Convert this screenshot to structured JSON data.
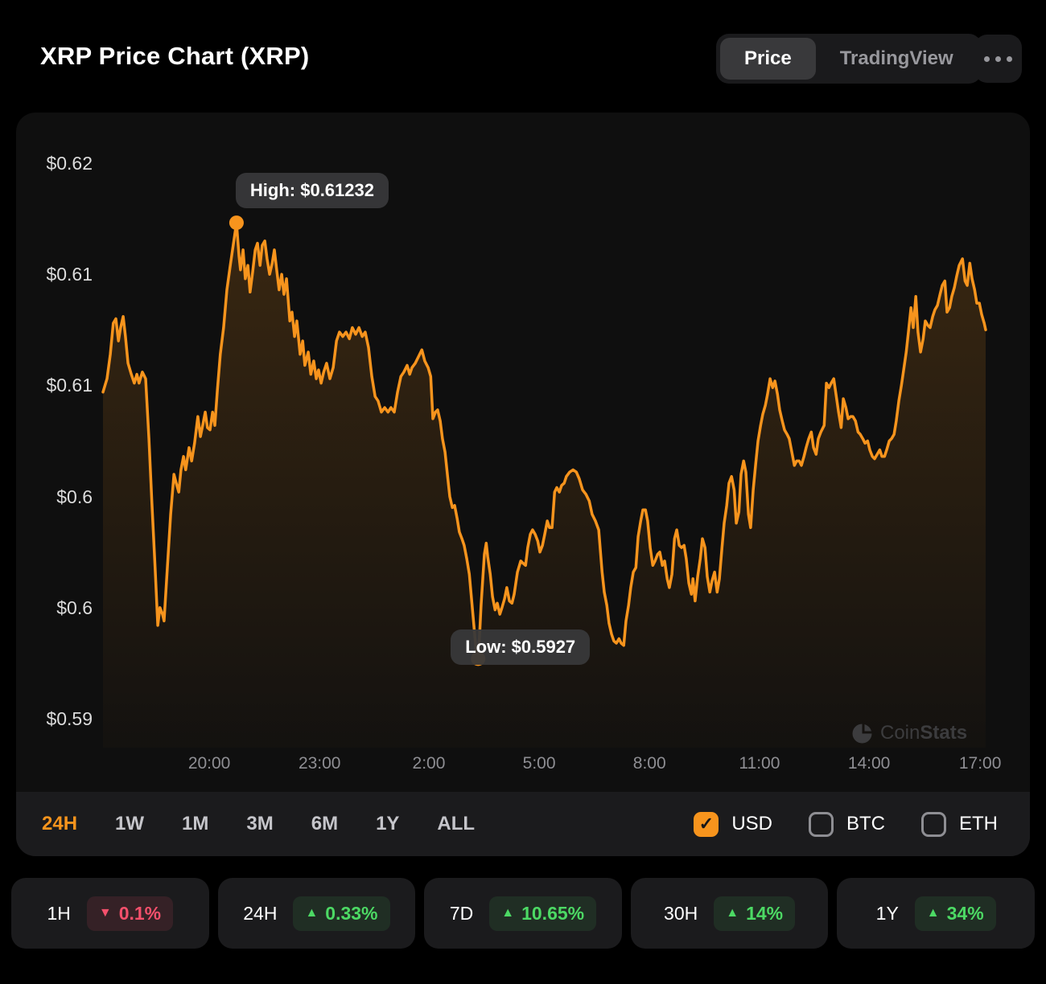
{
  "header": {
    "title": "XRP Price Chart (XRP)",
    "tabs": [
      {
        "label": "Price",
        "active": true
      },
      {
        "label": "TradingView",
        "active": false
      }
    ]
  },
  "colors": {
    "accent_orange": "#F7941D",
    "green": "#4CD964",
    "red": "#F4506C",
    "page_bg": "#000000",
    "card_bg": "#0F0F0F",
    "bar_bg": "#1B1B1D"
  },
  "watermark": {
    "text_coin": "Coin",
    "text_stats": "Stats",
    "icon": "pie-chart-icon"
  },
  "ranges": {
    "options": [
      "24H",
      "1W",
      "1M",
      "3M",
      "6M",
      "1Y",
      "ALL"
    ],
    "selected": "24H"
  },
  "currencies": [
    {
      "label": "USD",
      "checked": true
    },
    {
      "label": "BTC",
      "checked": false
    },
    {
      "label": "ETH",
      "checked": false
    }
  ],
  "stats": [
    {
      "label": "1H",
      "value": "0.1%",
      "direction": "down"
    },
    {
      "label": "24H",
      "value": "0.33%",
      "direction": "up"
    },
    {
      "label": "7D",
      "value": "10.65%",
      "direction": "up"
    },
    {
      "label": "30H",
      "value": "14%",
      "direction": "up"
    },
    {
      "label": "1Y",
      "value": "34%",
      "direction": "up"
    }
  ],
  "chart_data": {
    "type": "area",
    "title": "XRP Price Chart (XRP)",
    "x_unit": "hours_since_start",
    "x_range_hours": 24,
    "line_color": "#F7941D",
    "grid": false,
    "y_axis": {
      "min": 0.59,
      "max": 0.615,
      "tick_prices": [
        0.615,
        0.61,
        0.605,
        0.6,
        0.595,
        0.59
      ],
      "tick_labels": [
        "$0.62",
        "$0.61",
        "$0.61",
        "$0.6",
        "$0.6",
        "$0.59"
      ]
    },
    "x_axis": {
      "tick_hours": [
        2.89,
        5.89,
        8.86,
        11.86,
        14.86,
        17.85,
        20.83,
        23.85
      ],
      "tick_labels": [
        "20:00",
        "23:00",
        "2:00",
        "5:00",
        "8:00",
        "11:00",
        "14:00",
        "17:00"
      ]
    },
    "high": {
      "label": "High: $0.61232",
      "h": 3.63,
      "price": 0.61232
    },
    "low": {
      "label": "Low: $0.5927",
      "h": 10.2,
      "price": 0.5927
    },
    "series": [
      [
        0,
        0.6047
      ],
      [
        0.11,
        0.6053
      ],
      [
        0.2,
        0.6064
      ],
      [
        0.28,
        0.6078
      ],
      [
        0.35,
        0.608
      ],
      [
        0.42,
        0.607
      ],
      [
        0.48,
        0.6076
      ],
      [
        0.55,
        0.6081
      ],
      [
        0.61,
        0.6072
      ],
      [
        0.68,
        0.606
      ],
      [
        0.77,
        0.6055
      ],
      [
        0.85,
        0.6051
      ],
      [
        0.92,
        0.6055
      ],
      [
        0.98,
        0.6051
      ],
      [
        1.07,
        0.6056
      ],
      [
        1.16,
        0.6053
      ],
      [
        1.25,
        0.6026
      ],
      [
        1.33,
        0.5997
      ],
      [
        1.42,
        0.5967
      ],
      [
        1.49,
        0.5942
      ],
      [
        1.55,
        0.595
      ],
      [
        1.62,
        0.5947
      ],
      [
        1.66,
        0.5944
      ],
      [
        1.75,
        0.5968
      ],
      [
        1.84,
        0.5992
      ],
      [
        1.93,
        0.601
      ],
      [
        1.99,
        0.6006
      ],
      [
        2.06,
        0.6002
      ],
      [
        2.12,
        0.6012
      ],
      [
        2.19,
        0.6018
      ],
      [
        2.25,
        0.6012
      ],
      [
        2.34,
        0.6022
      ],
      [
        2.41,
        0.6016
      ],
      [
        2.49,
        0.6024
      ],
      [
        2.58,
        0.6036
      ],
      [
        2.65,
        0.6027
      ],
      [
        2.71,
        0.6032
      ],
      [
        2.78,
        0.6038
      ],
      [
        2.84,
        0.6031
      ],
      [
        2.91,
        0.603
      ],
      [
        2.98,
        0.6038
      ],
      [
        3.04,
        0.6032
      ],
      [
        3.11,
        0.6048
      ],
      [
        3.19,
        0.6064
      ],
      [
        3.28,
        0.6076
      ],
      [
        3.37,
        0.6093
      ],
      [
        3.46,
        0.6104
      ],
      [
        3.54,
        0.6113
      ],
      [
        3.63,
        0.61232
      ],
      [
        3.7,
        0.6108
      ],
      [
        3.74,
        0.6102
      ],
      [
        3.81,
        0.6111
      ],
      [
        3.87,
        0.6098
      ],
      [
        3.94,
        0.6104
      ],
      [
        4,
        0.6092
      ],
      [
        4.07,
        0.6101
      ],
      [
        4.14,
        0.6111
      ],
      [
        4.2,
        0.6114
      ],
      [
        4.27,
        0.6104
      ],
      [
        4.33,
        0.6113
      ],
      [
        4.4,
        0.6115
      ],
      [
        4.46,
        0.6107
      ],
      [
        4.53,
        0.61
      ],
      [
        4.6,
        0.6105
      ],
      [
        4.66,
        0.6111
      ],
      [
        4.73,
        0.6101
      ],
      [
        4.79,
        0.6093
      ],
      [
        4.86,
        0.61
      ],
      [
        4.92,
        0.6091
      ],
      [
        4.99,
        0.6098
      ],
      [
        5.08,
        0.6079
      ],
      [
        5.14,
        0.6083
      ],
      [
        5.21,
        0.6072
      ],
      [
        5.27,
        0.6079
      ],
      [
        5.36,
        0.6064
      ],
      [
        5.43,
        0.607
      ],
      [
        5.49,
        0.6059
      ],
      [
        5.58,
        0.6065
      ],
      [
        5.65,
        0.6055
      ],
      [
        5.73,
        0.6061
      ],
      [
        5.8,
        0.6053
      ],
      [
        5.86,
        0.6057
      ],
      [
        5.93,
        0.6051
      ],
      [
        6,
        0.6056
      ],
      [
        6.08,
        0.606
      ],
      [
        6.17,
        0.6053
      ],
      [
        6.26,
        0.6058
      ],
      [
        6.35,
        0.607
      ],
      [
        6.43,
        0.6074
      ],
      [
        6.52,
        0.6072
      ],
      [
        6.61,
        0.6074
      ],
      [
        6.7,
        0.6071
      ],
      [
        6.78,
        0.6076
      ],
      [
        6.87,
        0.6073
      ],
      [
        6.96,
        0.6076
      ],
      [
        7.05,
        0.6072
      ],
      [
        7.13,
        0.6074
      ],
      [
        7.22,
        0.6067
      ],
      [
        7.31,
        0.6054
      ],
      [
        7.4,
        0.6045
      ],
      [
        7.48,
        0.6043
      ],
      [
        7.57,
        0.6038
      ],
      [
        7.66,
        0.604
      ],
      [
        7.75,
        0.6038
      ],
      [
        7.83,
        0.604
      ],
      [
        7.92,
        0.6038
      ],
      [
        8.01,
        0.6047
      ],
      [
        8.1,
        0.6054
      ],
      [
        8.18,
        0.6056
      ],
      [
        8.27,
        0.6059
      ],
      [
        8.34,
        0.6055
      ],
      [
        8.4,
        0.6058
      ],
      [
        8.49,
        0.606
      ],
      [
        8.58,
        0.6063
      ],
      [
        8.67,
        0.6066
      ],
      [
        8.75,
        0.6061
      ],
      [
        8.84,
        0.6058
      ],
      [
        8.91,
        0.6054
      ],
      [
        8.97,
        0.6035
      ],
      [
        9.04,
        0.6038
      ],
      [
        9.1,
        0.6039
      ],
      [
        9.17,
        0.6034
      ],
      [
        9.23,
        0.6026
      ],
      [
        9.3,
        0.602
      ],
      [
        9.37,
        0.6009
      ],
      [
        9.43,
        0.6
      ],
      [
        9.5,
        0.5995
      ],
      [
        9.56,
        0.5996
      ],
      [
        9.63,
        0.599
      ],
      [
        9.69,
        0.5984
      ],
      [
        9.76,
        0.5981
      ],
      [
        9.82,
        0.5978
      ],
      [
        9.89,
        0.5972
      ],
      [
        9.96,
        0.5965
      ],
      [
        10.02,
        0.5954
      ],
      [
        10.09,
        0.5941
      ],
      [
        10.15,
        0.593
      ],
      [
        10.2,
        0.5927
      ],
      [
        10.24,
        0.5938
      ],
      [
        10.28,
        0.5951
      ],
      [
        10.33,
        0.5964
      ],
      [
        10.37,
        0.5974
      ],
      [
        10.42,
        0.5979
      ],
      [
        10.46,
        0.5973
      ],
      [
        10.53,
        0.5965
      ],
      [
        10.59,
        0.5955
      ],
      [
        10.66,
        0.5949
      ],
      [
        10.72,
        0.5952
      ],
      [
        10.79,
        0.5947
      ],
      [
        10.85,
        0.595
      ],
      [
        10.92,
        0.5954
      ],
      [
        10.98,
        0.5959
      ],
      [
        11.05,
        0.5953
      ],
      [
        11.12,
        0.5952
      ],
      [
        11.18,
        0.5956
      ],
      [
        11.27,
        0.5966
      ],
      [
        11.36,
        0.5971
      ],
      [
        11.42,
        0.597
      ],
      [
        11.49,
        0.5969
      ],
      [
        11.55,
        0.5977
      ],
      [
        11.62,
        0.5983
      ],
      [
        11.68,
        0.5985
      ],
      [
        11.75,
        0.5983
      ],
      [
        11.82,
        0.598
      ],
      [
        11.88,
        0.5975
      ],
      [
        11.95,
        0.5978
      ],
      [
        12.01,
        0.5983
      ],
      [
        12.08,
        0.5989
      ],
      [
        12.14,
        0.5986
      ],
      [
        12.21,
        0.5986
      ],
      [
        12.28,
        0.6002
      ],
      [
        12.34,
        0.6004
      ],
      [
        12.41,
        0.6002
      ],
      [
        12.47,
        0.6005
      ],
      [
        12.54,
        0.6006
      ],
      [
        12.6,
        0.6009
      ],
      [
        12.69,
        0.6011
      ],
      [
        12.78,
        0.6012
      ],
      [
        12.87,
        0.6011
      ],
      [
        12.95,
        0.6008
      ],
      [
        13.04,
        0.6003
      ],
      [
        13.13,
        0.6001
      ],
      [
        13.22,
        0.5998
      ],
      [
        13.3,
        0.5992
      ],
      [
        13.39,
        0.5989
      ],
      [
        13.48,
        0.5985
      ],
      [
        13.57,
        0.5966
      ],
      [
        13.63,
        0.5957
      ],
      [
        13.7,
        0.5951
      ],
      [
        13.76,
        0.5943
      ],
      [
        13.83,
        0.5938
      ],
      [
        13.89,
        0.5935
      ],
      [
        13.96,
        0.5934
      ],
      [
        14.03,
        0.5936
      ],
      [
        14.09,
        0.5934
      ],
      [
        14.16,
        0.5933
      ],
      [
        14.22,
        0.5944
      ],
      [
        14.29,
        0.5951
      ],
      [
        14.35,
        0.5959
      ],
      [
        14.42,
        0.5966
      ],
      [
        14.49,
        0.5968
      ],
      [
        14.55,
        0.5982
      ],
      [
        14.62,
        0.5989
      ],
      [
        14.68,
        0.5994
      ],
      [
        14.75,
        0.5994
      ],
      [
        14.81,
        0.5989
      ],
      [
        14.88,
        0.5977
      ],
      [
        14.95,
        0.5969
      ],
      [
        15.01,
        0.5971
      ],
      [
        15.08,
        0.5974
      ],
      [
        15.14,
        0.5975
      ],
      [
        15.21,
        0.5969
      ],
      [
        15.27,
        0.5971
      ],
      [
        15.34,
        0.5963
      ],
      [
        15.4,
        0.5959
      ],
      [
        15.47,
        0.5965
      ],
      [
        15.54,
        0.5981
      ],
      [
        15.6,
        0.5985
      ],
      [
        15.67,
        0.5978
      ],
      [
        15.73,
        0.5977
      ],
      [
        15.8,
        0.5978
      ],
      [
        15.86,
        0.5972
      ],
      [
        15.93,
        0.5961
      ],
      [
        16,
        0.5956
      ],
      [
        16.04,
        0.5963
      ],
      [
        16.1,
        0.5953
      ],
      [
        16.17,
        0.5964
      ],
      [
        16.24,
        0.5972
      ],
      [
        16.3,
        0.5981
      ],
      [
        16.37,
        0.5977
      ],
      [
        16.43,
        0.5964
      ],
      [
        16.5,
        0.5957
      ],
      [
        16.56,
        0.5962
      ],
      [
        16.63,
        0.5966
      ],
      [
        16.7,
        0.5957
      ],
      [
        16.76,
        0.5963
      ],
      [
        16.83,
        0.5977
      ],
      [
        16.89,
        0.5988
      ],
      [
        16.96,
        0.5996
      ],
      [
        17.02,
        0.6006
      ],
      [
        17.09,
        0.6009
      ],
      [
        17.16,
        0.6003
      ],
      [
        17.22,
        0.5988
      ],
      [
        17.29,
        0.5993
      ],
      [
        17.35,
        0.601
      ],
      [
        17.42,
        0.6016
      ],
      [
        17.48,
        0.6011
      ],
      [
        17.55,
        0.5992
      ],
      [
        17.61,
        0.5986
      ],
      [
        17.68,
        0.6003
      ],
      [
        17.75,
        0.6015
      ],
      [
        17.81,
        0.6025
      ],
      [
        17.88,
        0.6032
      ],
      [
        17.94,
        0.6037
      ],
      [
        18.01,
        0.6041
      ],
      [
        18.07,
        0.6046
      ],
      [
        18.14,
        0.6053
      ],
      [
        18.21,
        0.6049
      ],
      [
        18.27,
        0.6052
      ],
      [
        18.34,
        0.6046
      ],
      [
        18.4,
        0.6039
      ],
      [
        18.47,
        0.6034
      ],
      [
        18.53,
        0.603
      ],
      [
        18.6,
        0.6028
      ],
      [
        18.66,
        0.6026
      ],
      [
        18.73,
        0.602
      ],
      [
        18.8,
        0.6014
      ],
      [
        18.86,
        0.6016
      ],
      [
        18.93,
        0.6016
      ],
      [
        18.99,
        0.6014
      ],
      [
        19.06,
        0.6018
      ],
      [
        19.12,
        0.6022
      ],
      [
        19.19,
        0.6026
      ],
      [
        19.26,
        0.6029
      ],
      [
        19.32,
        0.6022
      ],
      [
        19.39,
        0.6019
      ],
      [
        19.45,
        0.6026
      ],
      [
        19.52,
        0.6029
      ],
      [
        19.61,
        0.6032
      ],
      [
        19.67,
        0.6051
      ],
      [
        19.74,
        0.6049
      ],
      [
        19.8,
        0.6051
      ],
      [
        19.87,
        0.6053
      ],
      [
        19.93,
        0.6046
      ],
      [
        20,
        0.6038
      ],
      [
        20.07,
        0.6031
      ],
      [
        20.13,
        0.6044
      ],
      [
        20.2,
        0.604
      ],
      [
        20.26,
        0.6035
      ],
      [
        20.33,
        0.6036
      ],
      [
        20.39,
        0.6036
      ],
      [
        20.46,
        0.6034
      ],
      [
        20.53,
        0.6029
      ],
      [
        20.59,
        0.6028
      ],
      [
        20.66,
        0.6026
      ],
      [
        20.72,
        0.6024
      ],
      [
        20.79,
        0.6025
      ],
      [
        20.85,
        0.6021
      ],
      [
        20.92,
        0.6018
      ],
      [
        20.98,
        0.6017
      ],
      [
        21.05,
        0.6019
      ],
      [
        21.12,
        0.6021
      ],
      [
        21.18,
        0.6018
      ],
      [
        21.25,
        0.6018
      ],
      [
        21.31,
        0.6021
      ],
      [
        21.38,
        0.6025
      ],
      [
        21.44,
        0.6026
      ],
      [
        21.51,
        0.6028
      ],
      [
        21.57,
        0.6034
      ],
      [
        21.64,
        0.6043
      ],
      [
        21.71,
        0.605
      ],
      [
        21.77,
        0.6057
      ],
      [
        21.84,
        0.6065
      ],
      [
        21.9,
        0.6074
      ],
      [
        21.97,
        0.6085
      ],
      [
        22.03,
        0.6076
      ],
      [
        22.1,
        0.609
      ],
      [
        22.16,
        0.6074
      ],
      [
        22.23,
        0.6065
      ],
      [
        22.3,
        0.6071
      ],
      [
        22.36,
        0.6079
      ],
      [
        22.43,
        0.6077
      ],
      [
        22.49,
        0.6076
      ],
      [
        22.56,
        0.6081
      ],
      [
        22.62,
        0.6084
      ],
      [
        22.69,
        0.6086
      ],
      [
        22.76,
        0.6091
      ],
      [
        22.82,
        0.6095
      ],
      [
        22.89,
        0.6097
      ],
      [
        22.95,
        0.6083
      ],
      [
        23.02,
        0.6085
      ],
      [
        23.08,
        0.609
      ],
      [
        23.15,
        0.6094
      ],
      [
        23.21,
        0.6099
      ],
      [
        23.28,
        0.6104
      ],
      [
        23.37,
        0.6107
      ],
      [
        23.44,
        0.6097
      ],
      [
        23.5,
        0.6095
      ],
      [
        23.57,
        0.6105
      ],
      [
        23.63,
        0.6098
      ],
      [
        23.7,
        0.6093
      ],
      [
        23.76,
        0.6087
      ],
      [
        23.83,
        0.6087
      ],
      [
        23.89,
        0.6082
      ],
      [
        23.96,
        0.6078
      ],
      [
        24,
        0.6075
      ]
    ]
  }
}
